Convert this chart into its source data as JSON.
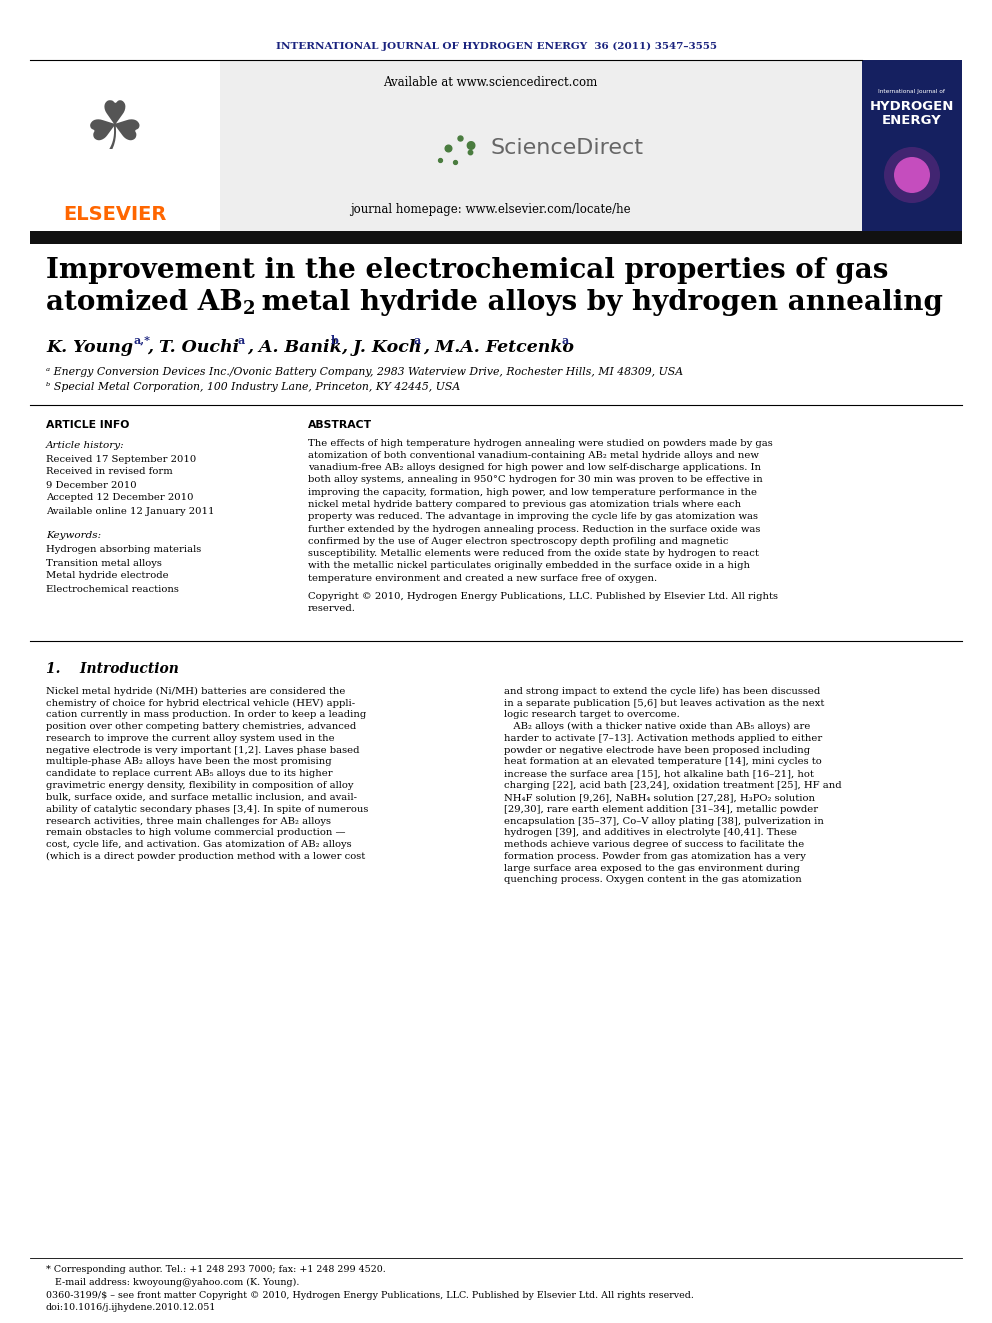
{
  "journal_header": "INTERNATIONAL JOURNAL OF HYDROGEN ENERGY  36 (2011) 3547–3555",
  "journal_header_color": "#1a237e",
  "available_text": "Available at www.sciencedirect.com",
  "journal_homepage": "journal homepage: www.elsevier.com/locate/he",
  "elsevier_color": "#ff6600",
  "title_line1": "Improvement in the electrochemical properties of gas",
  "title_line2_pre": "atomized AB",
  "title_line2_sub": "2",
  "title_line2_post": " metal hydride alloys by hydrogen annealing",
  "affil_a": "ᵃ Energy Conversion Devices Inc./Ovonic Battery Company, 2983 Waterview Drive, Rochester Hills, MI 48309, USA",
  "affil_b": "ᵇ Special Metal Corporation, 100 Industry Lane, Princeton, KY 42445, USA",
  "article_info_title": "ARTICLE INFO",
  "article_history_title": "Article history:",
  "received1": "Received 17 September 2010",
  "received2": "Received in revised form",
  "date2": "9 December 2010",
  "accepted": "Accepted 12 December 2010",
  "available_online": "Available online 12 January 2011",
  "keywords_title": "Keywords:",
  "kw1": "Hydrogen absorbing materials",
  "kw2": "Transition metal alloys",
  "kw3": "Metal hydride electrode",
  "kw4": "Electrochemical reactions",
  "abstract_title": "ABSTRACT",
  "abstract_lines": [
    "The effects of high temperature hydrogen annealing were studied on powders made by gas",
    "atomization of both conventional vanadium-containing AB₂ metal hydride alloys and new",
    "vanadium-free AB₂ alloys designed for high power and low self-discharge applications. In",
    "both alloy systems, annealing in 950°C hydrogen for 30 min was proven to be effective in",
    "improving the capacity, formation, high power, and low temperature performance in the",
    "nickel metal hydride battery compared to previous gas atomization trials where each",
    "property was reduced. The advantage in improving the cycle life by gas atomization was",
    "further extended by the hydrogen annealing process. Reduction in the surface oxide was",
    "confirmed by the use of Auger electron spectroscopy depth profiling and magnetic",
    "susceptibility. Metallic elements were reduced from the oxide state by hydrogen to react",
    "with the metallic nickel particulates originally embedded in the surface oxide in a high",
    "temperature environment and created a new surface free of oxygen."
  ],
  "copyright_lines": [
    "Copyright © 2010, Hydrogen Energy Publications, LLC. Published by Elsevier Ltd. All rights",
    "reserved."
  ],
  "intro_title": "1.    Introduction",
  "intro_col1_lines": [
    "Nickel metal hydride (Ni/MH) batteries are considered the",
    "chemistry of choice for hybrid electrical vehicle (HEV) appli-",
    "cation currently in mass production. In order to keep a leading",
    "position over other competing battery chemistries, advanced",
    "research to improve the current alloy system used in the",
    "negative electrode is very important [1,2]. Laves phase based",
    "multiple-phase AB₂ alloys have been the most promising",
    "candidate to replace current AB₅ alloys due to its higher",
    "gravimetric energy density, flexibility in composition of alloy",
    "bulk, surface oxide, and surface metallic inclusion, and avail-",
    "ability of catalytic secondary phases [3,4]. In spite of numerous",
    "research activities, three main challenges for AB₂ alloys",
    "remain obstacles to high volume commercial production —",
    "cost, cycle life, and activation. Gas atomization of AB₂ alloys",
    "(which is a direct powder production method with a lower cost"
  ],
  "intro_col2_lines": [
    "and strong impact to extend the cycle life) has been discussed",
    "in a separate publication [5,6] but leaves activation as the next",
    "logic research target to overcome.",
    "   AB₂ alloys (with a thicker native oxide than AB₅ alloys) are",
    "harder to activate [7–13]. Activation methods applied to either",
    "powder or negative electrode have been proposed including",
    "heat formation at an elevated temperature [14], mini cycles to",
    "increase the surface area [15], hot alkaline bath [16–21], hot",
    "charging [22], acid bath [23,24], oxidation treatment [25], HF and",
    "NH₄F solution [9,26], NaBH₄ solution [27,28], H₃PO₂ solution",
    "[29,30], rare earth element addition [31–34], metallic powder",
    "encapsulation [35–37], Co–V alloy plating [38], pulverization in",
    "hydrogen [39], and additives in electrolyte [40,41]. These",
    "methods achieve various degree of success to facilitate the",
    "formation process. Powder from gas atomization has a very",
    "large surface area exposed to the gas environment during",
    "quenching process. Oxygen content in the gas atomization"
  ],
  "footnote_star": "* Corresponding author. Tel.: +1 248 293 7000; fax: +1 248 299 4520.",
  "footnote_email": "   E-mail address: kwoyoung@yahoo.com (K. Young).",
  "footnote_issn": "0360-3199/$ – see front matter Copyright © 2010, Hydrogen Energy Publications, LLC. Published by Elsevier Ltd. All rights reserved.",
  "footnote_doi": "doi:10.1016/j.ijhydene.2010.12.051",
  "bg_color": "#ffffff",
  "dark_bar_color": "#111111",
  "section_color": "#1a237e"
}
